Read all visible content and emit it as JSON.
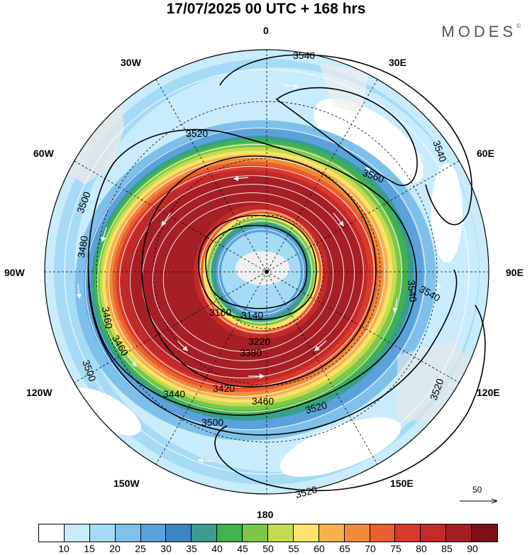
{
  "header": {
    "title": "17/07/2025  00 UTC  + 168 hrs",
    "brand": "MODES",
    "brand_mark": "©"
  },
  "map": {
    "center_marker": "south-pole",
    "longitude_labels": {
      "top": "0",
      "upper_left": "30W",
      "upper_right": "30E",
      "mid_upper_left": "60W",
      "mid_upper_right": "60E",
      "left": "90W",
      "right": "90E",
      "lower_left": "120W",
      "lower_right": "120E",
      "bottom_left": "150W",
      "bottom_right": "150E",
      "bottom": "180"
    },
    "contour_labels": [
      "3540",
      "3540",
      "3520",
      "3560",
      "3500",
      "3480",
      "3460",
      "3460",
      "3500",
      "3500",
      "3520",
      "3520",
      "3520",
      "3540",
      "3160",
      "3140",
      "3440",
      "3420",
      "3460",
      "3380",
      "3220"
    ],
    "vector_scale": "50"
  },
  "colorbar": {
    "labels": [
      "10",
      "15",
      "20",
      "25",
      "30",
      "35",
      "40",
      "45",
      "50",
      "55",
      "60",
      "65",
      "70",
      "75",
      "80",
      "85",
      "90"
    ],
    "colors": [
      "#ffffff",
      "#c8ecfb",
      "#a6dbf6",
      "#7fc0ea",
      "#5ba2dc",
      "#3f84c2",
      "#3a9d8d",
      "#3fb24f",
      "#7cc64a",
      "#c3dc4e",
      "#fbe26a",
      "#f7b04a",
      "#f08a3a",
      "#e9602e",
      "#d93a2b",
      "#c22a2a",
      "#a51f24"
    ]
  }
}
